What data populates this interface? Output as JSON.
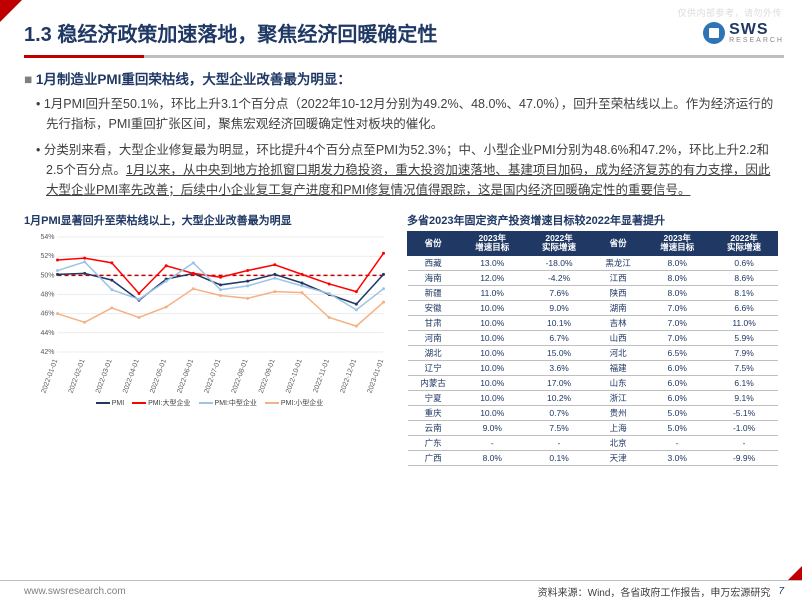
{
  "watermark": "仅供内部参考，请勿外传",
  "header": {
    "title": "1.3 稳经济政策加速落地，聚焦经济回暖确定性",
    "logo_text": "SWS",
    "logo_sub": "RESEARCH"
  },
  "body": {
    "heading": "1月制造业PMI重回荣枯线，大型企业改善最为明显：",
    "p1": "1月PMI回升至50.1%，环比上升3.1个百分点（2022年10-12月分别为49.2%、48.0%、47.0%），回升至荣枯线以上。作为经济运行的先行指标，PMI重回扩张区间，聚焦宏观经济回暖确定性对板块的催化。",
    "p2_a": "分类别来看，大型企业修复最为明显，环比提升4个百分点至PMI为52.3%；中、小型企业PMI分别为48.6%和47.2%，环比上升2.2和2.5个百分点。",
    "p2_b": "1月以来，从中央到地方抢抓窗口期发力稳投资，重大投资加速落地、基建项目加码，成为经济复苏的有力支撑，因此大型企业PMI率先改善；后续中小企业复工复产进度和PMI修复情况值得跟踪，这是国内经济回暖确定性的重要信号。"
  },
  "chart": {
    "title": "1月PMI显著回升至荣枯线以上，大型企业改善最为明显",
    "type": "line",
    "x_labels": [
      "2022-01-01",
      "2022-02-01",
      "2022-03-01",
      "2022-04-01",
      "2022-05-01",
      "2022-06-01",
      "2022-07-01",
      "2022-08-01",
      "2022-09-01",
      "2022-10-01",
      "2022-11-01",
      "2022-12-01",
      "2023-01-01"
    ],
    "y_ticks": [
      42,
      44,
      46,
      48,
      50,
      52,
      54
    ],
    "ylim": [
      42,
      54
    ],
    "ref_line": 50,
    "ref_color": "#c00000",
    "ref_dash": "4,3",
    "grid_color": "#d9d9d9",
    "background_color": "#ffffff",
    "series": [
      {
        "name": "PMI",
        "color": "#203864",
        "values": [
          50.1,
          50.2,
          49.5,
          47.4,
          49.6,
          50.2,
          49.0,
          49.4,
          50.1,
          49.2,
          48.0,
          47.0,
          50.1
        ]
      },
      {
        "name": "PMI:大型企业",
        "color": "#ff0000",
        "values": [
          51.6,
          51.8,
          51.3,
          48.1,
          51.0,
          50.2,
          49.8,
          50.5,
          51.1,
          50.1,
          49.1,
          48.3,
          52.3
        ]
      },
      {
        "name": "PMI:中型企业",
        "color": "#9dc3e6",
        "values": [
          50.5,
          51.4,
          48.5,
          47.5,
          49.4,
          51.3,
          48.5,
          48.9,
          49.7,
          48.9,
          48.1,
          46.4,
          48.6
        ]
      },
      {
        "name": "PMI:小型企业",
        "color": "#f4b183",
        "values": [
          46.0,
          45.1,
          46.6,
          45.6,
          46.7,
          48.6,
          47.9,
          47.6,
          48.3,
          48.2,
          45.6,
          44.7,
          47.2
        ]
      }
    ],
    "axis_fontsize": 7,
    "line_width": 1.5
  },
  "table": {
    "title": "多省2023年固定资产投资增速目标较2022年显著提升",
    "headers": [
      "省份",
      "2023年\n增速目标",
      "2022年\n实际增速",
      "省份",
      "2023年\n增速目标",
      "2022年\n实际增速"
    ],
    "header_bg": "#1f3864",
    "header_fg": "#ffffff",
    "border_color": "#bfbfbf",
    "rows": [
      [
        "西藏",
        "13.0%",
        "-18.0%",
        "黑龙江",
        "8.0%",
        "0.6%"
      ],
      [
        "海南",
        "12.0%",
        "-4.2%",
        "江西",
        "8.0%",
        "8.6%"
      ],
      [
        "新疆",
        "11.0%",
        "7.6%",
        "陕西",
        "8.0%",
        "8.1%"
      ],
      [
        "安徽",
        "10.0%",
        "9.0%",
        "湖南",
        "7.0%",
        "6.6%"
      ],
      [
        "甘肃",
        "10.0%",
        "10.1%",
        "吉林",
        "7.0%",
        "11.0%"
      ],
      [
        "河南",
        "10.0%",
        "6.7%",
        "山西",
        "7.0%",
        "5.9%"
      ],
      [
        "湖北",
        "10.0%",
        "15.0%",
        "河北",
        "6.5%",
        "7.9%"
      ],
      [
        "辽宁",
        "10.0%",
        "3.6%",
        "福建",
        "6.0%",
        "7.5%"
      ],
      [
        "内蒙古",
        "10.0%",
        "17.0%",
        "山东",
        "6.0%",
        "6.1%"
      ],
      [
        "宁夏",
        "10.0%",
        "10.2%",
        "浙江",
        "6.0%",
        "9.1%"
      ],
      [
        "重庆",
        "10.0%",
        "0.7%",
        "贵州",
        "5.0%",
        "-5.1%"
      ],
      [
        "云南",
        "9.0%",
        "7.5%",
        "上海",
        "5.0%",
        "-1.0%"
      ],
      [
        "广东",
        "-",
        "-",
        "北京",
        "-",
        "-"
      ],
      [
        "广西",
        "8.0%",
        "0.1%",
        "天津",
        "3.0%",
        "-9.9%"
      ]
    ]
  },
  "footer": {
    "site": "www.swsresearch.com",
    "source": "资料来源：Wind，各省政府工作报告，申万宏源研究",
    "page": "7"
  }
}
